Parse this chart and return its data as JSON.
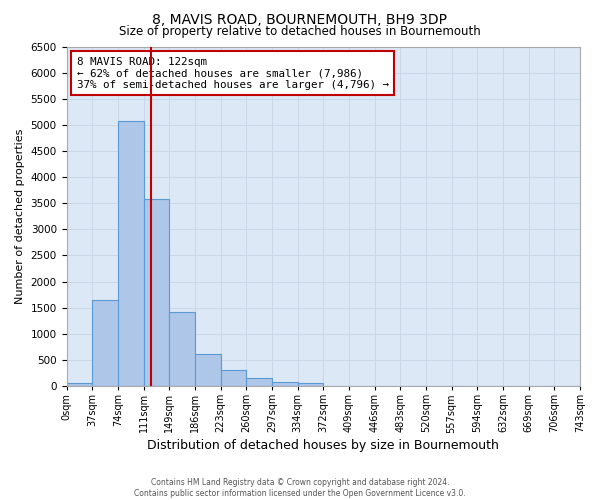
{
  "title": "8, MAVIS ROAD, BOURNEMOUTH, BH9 3DP",
  "subtitle": "Size of property relative to detached houses in Bournemouth",
  "xlabel": "Distribution of detached houses by size in Bournemouth",
  "ylabel": "Number of detached properties",
  "bin_edges": [
    0,
    37,
    74,
    111,
    148,
    185,
    222,
    259,
    296,
    333,
    370,
    407,
    444,
    481,
    518,
    555,
    592,
    629,
    666,
    703,
    740
  ],
  "bin_labels": [
    "0sqm",
    "37sqm",
    "74sqm",
    "111sqm",
    "149sqm",
    "186sqm",
    "223sqm",
    "260sqm",
    "297sqm",
    "334sqm",
    "372sqm",
    "409sqm",
    "446sqm",
    "483sqm",
    "520sqm",
    "557sqm",
    "594sqm",
    "632sqm",
    "669sqm",
    "706sqm",
    "743sqm"
  ],
  "bar_heights": [
    50,
    1650,
    5080,
    3580,
    1420,
    620,
    300,
    150,
    75,
    50,
    0,
    0,
    0,
    0,
    0,
    0,
    0,
    0,
    0,
    0
  ],
  "bar_color": "#aec6e8",
  "bar_edge_color": "#5b9bd5",
  "property_size": 122,
  "vline_color": "#c00000",
  "annotation_line1": "8 MAVIS ROAD: 122sqm",
  "annotation_line2": "← 62% of detached houses are smaller (7,986)",
  "annotation_line3": "37% of semi-detached houses are larger (4,796) →",
  "annotation_box_color": "#ffffff",
  "annotation_border_color": "#c00000",
  "ylim": [
    0,
    6500
  ],
  "yticks": [
    0,
    500,
    1000,
    1500,
    2000,
    2500,
    3000,
    3500,
    4000,
    4500,
    5000,
    5500,
    6000,
    6500
  ],
  "plot_bg_color": "#dce8f5",
  "background_color": "#ffffff",
  "grid_color": "#c8d8e8",
  "footnote1": "Contains HM Land Registry data © Crown copyright and database right 2024.",
  "footnote2": "Contains public sector information licensed under the Open Government Licence v3.0."
}
